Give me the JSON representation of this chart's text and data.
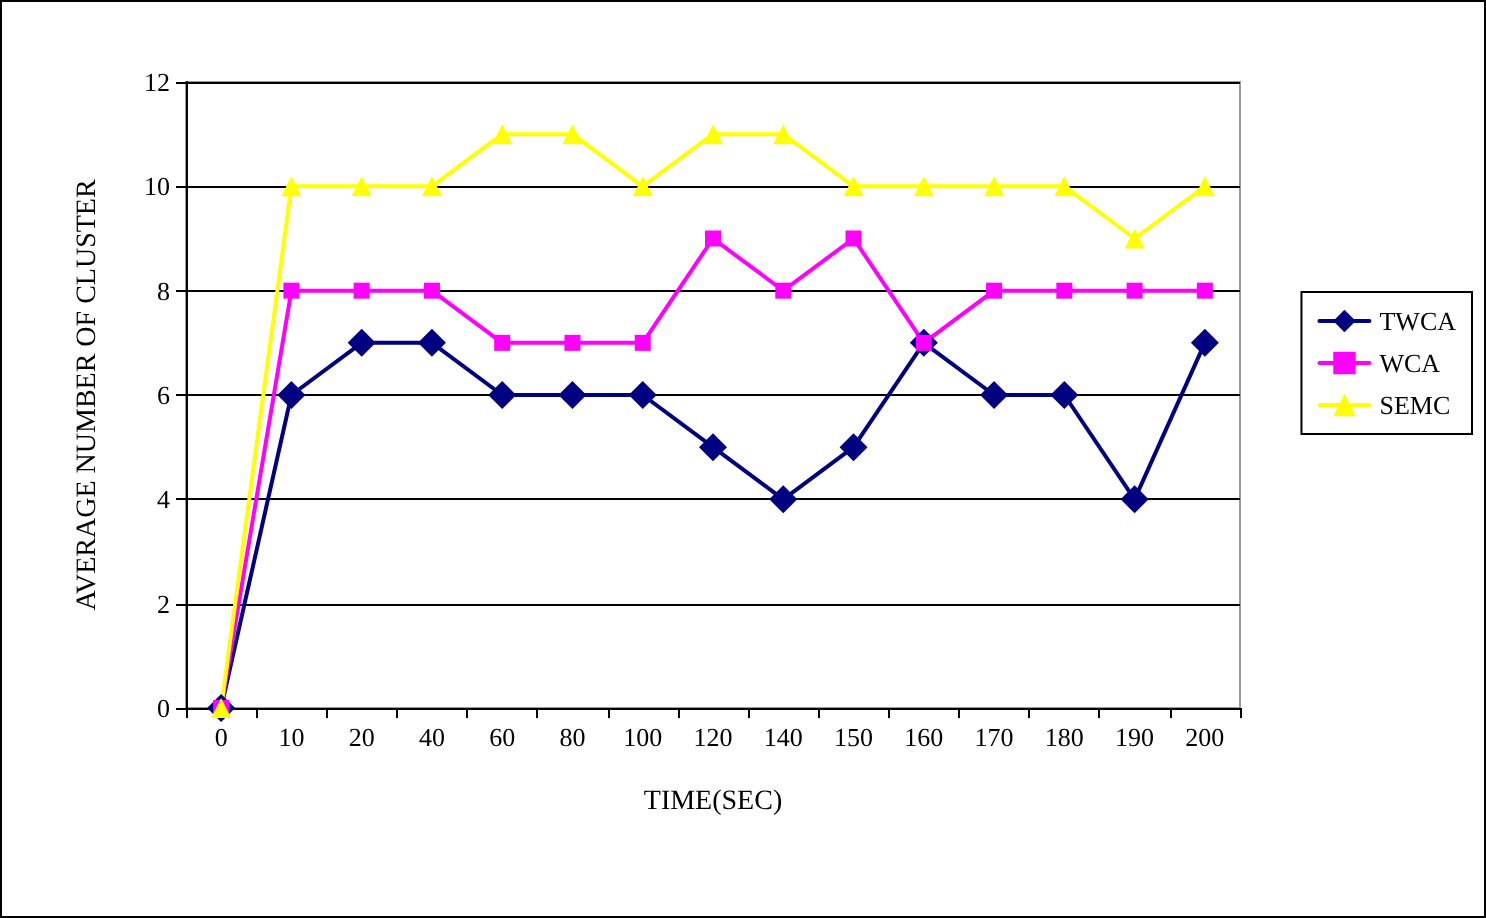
{
  "chart_data": {
    "type": "line",
    "xlabel": "TIME(SEC)",
    "ylabel": "AVERAGE NUMBER OF CLUSTER",
    "categories": [
      "0",
      "10",
      "20",
      "40",
      "60",
      "80",
      "100",
      "120",
      "140",
      "150",
      "160",
      "170",
      "180",
      "190",
      "200"
    ],
    "series": [
      {
        "name": "TWCA",
        "color": "#000080",
        "marker": "diamond",
        "values": [
          0,
          6,
          7,
          7,
          6,
          6,
          6,
          5,
          4,
          5,
          7,
          6,
          6,
          4,
          7
        ]
      },
      {
        "name": "WCA",
        "color": "#ff00ff",
        "marker": "square",
        "values": [
          0,
          8,
          8,
          8,
          7,
          7,
          7,
          9,
          8,
          9,
          7,
          8,
          8,
          8,
          8
        ]
      },
      {
        "name": "SEMC",
        "color": "#ffff00",
        "marker": "triangle",
        "values": [
          0,
          10,
          10,
          10,
          11,
          11,
          10,
          11,
          11,
          10,
          10,
          10,
          10,
          9,
          10
        ]
      }
    ],
    "ylim": [
      0,
      12
    ],
    "yticks": [
      0,
      2,
      4,
      6,
      8,
      10,
      12
    ],
    "grid": "y",
    "legend": "right",
    "line_style": "solid"
  }
}
